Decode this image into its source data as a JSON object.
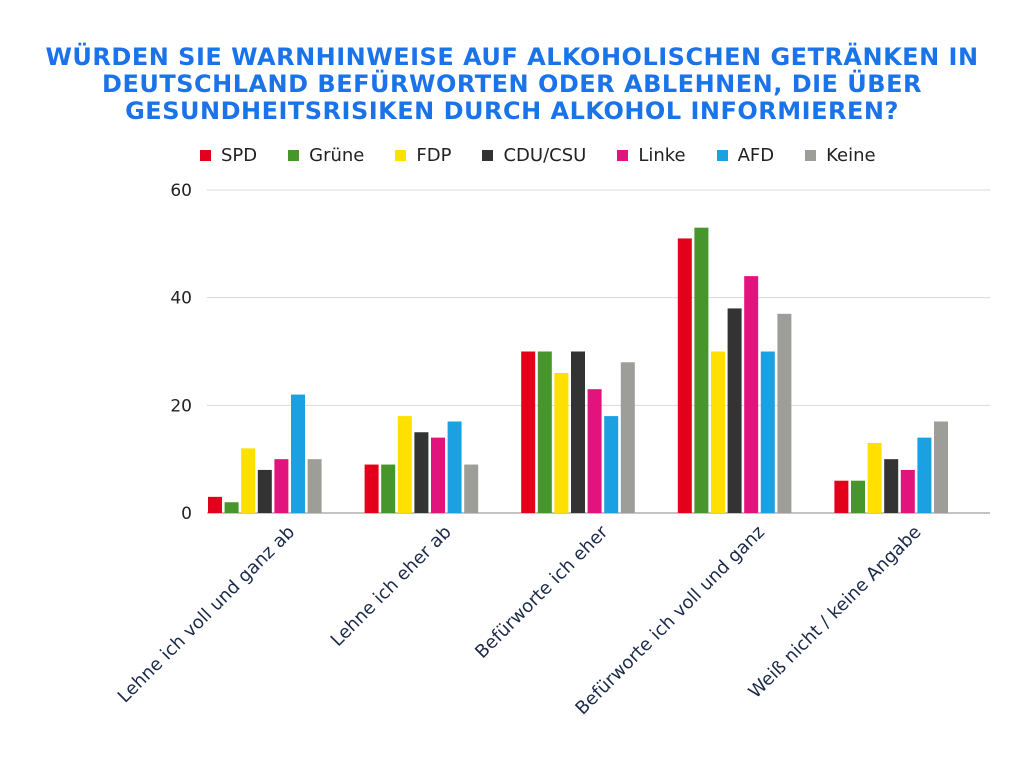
{
  "chart_data": {
    "type": "bar",
    "title": "WÜRDEN SIE WARNHINWEISE AUF ALKOHOLISCHEN GETRÄNKEN IN DEUTSCHLAND BEFÜRWORTEN ODER ABLEHNEN, DIE ÜBER GESUNDHEITSRISIKEN DURCH ALKOHOL INFORMIEREN?",
    "categories": [
      "Lehne ich voll und ganz ab",
      "Lehne ich eher ab",
      "Befürworte ich eher",
      "Befürworte ich voll und ganz",
      "Weiß nicht / keine Angabe"
    ],
    "series": [
      {
        "name": "SPD",
        "color": "#e3001b",
        "values": [
          3,
          9,
          30,
          51,
          6
        ]
      },
      {
        "name": "Grüne",
        "color": "#46962b",
        "values": [
          2,
          9,
          30,
          53,
          6
        ]
      },
      {
        "name": "FDP",
        "color": "#ffe000",
        "values": [
          12,
          18,
          26,
          30,
          13
        ]
      },
      {
        "name": "CDU/CSU",
        "color": "#333333",
        "values": [
          8,
          15,
          30,
          38,
          10
        ]
      },
      {
        "name": "Linke",
        "color": "#e3137d",
        "values": [
          10,
          14,
          23,
          44,
          8
        ]
      },
      {
        "name": "AFD",
        "color": "#1ba1e2",
        "values": [
          22,
          17,
          18,
          30,
          14
        ]
      },
      {
        "name": "Keine",
        "color": "#9e9e99",
        "values": [
          10,
          9,
          28,
          37,
          17
        ]
      }
    ],
    "yticks": [
      "0",
      "20",
      "40",
      "60"
    ],
    "ylim": [
      0,
      60
    ],
    "grid": true,
    "legend_position": "top"
  }
}
